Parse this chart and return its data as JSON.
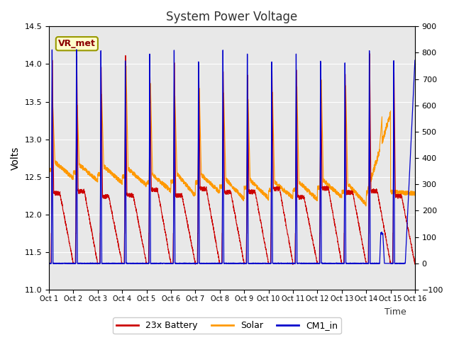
{
  "title": "System Power Voltage",
  "ylabel_left": "Volts",
  "xlabel": "Time",
  "ylim_left": [
    11.0,
    14.5
  ],
  "ylim_right": [
    -100,
    900
  ],
  "yticks_left": [
    11.0,
    11.5,
    12.0,
    12.5,
    13.0,
    13.5,
    14.0,
    14.5
  ],
  "yticks_right": [
    -100,
    0,
    100,
    200,
    300,
    400,
    500,
    600,
    700,
    800,
    900
  ],
  "xtick_labels": [
    "Oct 1",
    "Oct 2",
    "Oct 3",
    "Oct 4",
    "Oct 5",
    "Oct 6",
    "Oct 7",
    "Oct 8",
    "Oct 9",
    "Oct 10",
    "Oct 11",
    "Oct 12",
    "Oct 13",
    "Oct 14",
    "Oct 15",
    "Oct 16"
  ],
  "vr_met_label": "VR_met",
  "legend_labels": [
    "23x Battery",
    "Solar",
    "CM1_in"
  ],
  "legend_colors": [
    "#cc0000",
    "#ff9900",
    "#0000cc"
  ],
  "fig_bg_color": "#ffffff",
  "plot_bg_color": "#e8e8e8",
  "grid_color": "#ffffff",
  "title_fontsize": 12,
  "n_days": 15,
  "n_pts": 200
}
